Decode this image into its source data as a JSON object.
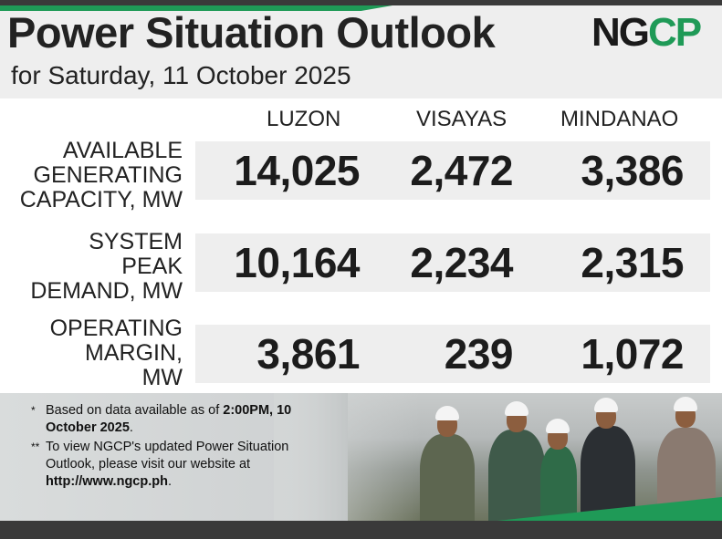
{
  "header": {
    "title": "Power Situation Outlook",
    "subtitle": "for Saturday, 11 October 2025",
    "logo": {
      "part1": "NG",
      "part2": "CP"
    }
  },
  "columns": [
    "LUZON",
    "VISAYAS",
    "MINDANAO"
  ],
  "rows": [
    {
      "label": "AVAILABLE\nGENERATING\nCAPACITY, MW",
      "values": [
        "14,025",
        "2,472",
        "3,386"
      ]
    },
    {
      "label": "SYSTEM\nPEAK\nDEMAND, MW",
      "values": [
        "10,164",
        "2,234",
        "2,315"
      ]
    },
    {
      "label": "OPERATING\nMARGIN,\nMW",
      "values": [
        "3,861",
        "239",
        "1,072"
      ]
    }
  ],
  "notes": {
    "note1": {
      "star": "*",
      "text": "Based on data available as of ",
      "bold": "2:00PM, 10 October 2025",
      "end": "."
    },
    "note2": {
      "star": "**",
      "text": "To view NGCP's updated Power Situation Outlook, please visit our website at ",
      "bold": "http://www.ngcp.ph",
      "end": "."
    }
  },
  "colors": {
    "brand_green": "#1f9a57",
    "dark": "#3a3a3a",
    "band": "#eeeeee"
  }
}
